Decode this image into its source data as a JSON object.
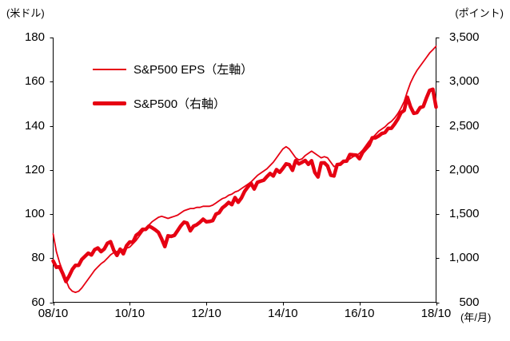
{
  "chart_data": {
    "type": "line",
    "title": "",
    "left_axis": {
      "unit": "(米ドル)",
      "min": 60,
      "max": 180,
      "ticks": [
        {
          "value": 180,
          "label": "180"
        },
        {
          "value": 160,
          "label": "160"
        },
        {
          "value": 140,
          "label": "140"
        },
        {
          "value": 120,
          "label": "120"
        },
        {
          "value": 100,
          "label": "100"
        },
        {
          "value": 80,
          "label": "80"
        },
        {
          "value": 60,
          "label": "60"
        }
      ]
    },
    "right_axis": {
      "unit": "(ポイント)",
      "min": 500,
      "max": 3500,
      "ticks": [
        {
          "value": 3500,
          "label": "3,500"
        },
        {
          "value": 3000,
          "label": "3,000"
        },
        {
          "value": 2500,
          "label": "2,500"
        },
        {
          "value": 2000,
          "label": "2,000"
        },
        {
          "value": 1500,
          "label": "1,500"
        },
        {
          "value": 1000,
          "label": "1,000"
        },
        {
          "value": 500,
          "label": "500"
        }
      ]
    },
    "x_axis": {
      "unit": "(年/月)",
      "start": "2008/10",
      "end": "2018/10",
      "frequency": "monthly",
      "ticks": [
        {
          "label": "08/10",
          "index": 0
        },
        {
          "label": "10/10",
          "index": 24
        },
        {
          "label": "12/10",
          "index": 48
        },
        {
          "label": "14/10",
          "index": 72
        },
        {
          "label": "16/10",
          "index": 96
        },
        {
          "label": "18/10",
          "index": 120
        }
      ]
    },
    "series": [
      {
        "name": "S&P500 EPS（左軸）",
        "axis": "left",
        "color": "#e60012",
        "line_width": "thin",
        "values": [
          91,
          83,
          78,
          74,
          70,
          66.5,
          65,
          64.5,
          65,
          66.5,
          68.5,
          70.5,
          72.5,
          74.5,
          76,
          77.5,
          78.5,
          80,
          81.5,
          82.5,
          83,
          83.5,
          84,
          84.5,
          85,
          86.5,
          88,
          90,
          92,
          93.5,
          95,
          96.5,
          97.5,
          98.5,
          99,
          98.5,
          98,
          98.5,
          99,
          99.5,
          100.5,
          101.5,
          102,
          102.5,
          102.5,
          103,
          103,
          103.5,
          103.5,
          103.5,
          104,
          105,
          106,
          107,
          107.5,
          108.5,
          109,
          110,
          110.5,
          111.5,
          112.5,
          113.5,
          114.5,
          116,
          117.5,
          118.5,
          119.5,
          120.5,
          122,
          123.5,
          125.5,
          127.5,
          129.5,
          130.5,
          129.5,
          127.5,
          125.5,
          124.5,
          125,
          126.5,
          127.5,
          128.5,
          127.5,
          126.5,
          125.5,
          126,
          125.5,
          123.5,
          121.5,
          122,
          123,
          123.5,
          124,
          125,
          126,
          126.5,
          127.5,
          129,
          131,
          133,
          134.5,
          136,
          137.5,
          138.5,
          139.5,
          141,
          142,
          143.5,
          145.5,
          148,
          151,
          155.5,
          159.5,
          162.5,
          165,
          167,
          169,
          171,
          173,
          174.5,
          176
        ]
      },
      {
        "name": "S&P500（右軸）",
        "axis": "right",
        "color": "#e60012",
        "line_width": "thick",
        "values": [
          969,
          896,
          903,
          826,
          735,
          798,
          873,
          919,
          919,
          987,
          1021,
          1057,
          1036,
          1096,
          1115,
          1074,
          1104,
          1169,
          1187,
          1089,
          1031,
          1102,
          1049,
          1141,
          1183,
          1181,
          1258,
          1286,
          1327,
          1326,
          1364,
          1345,
          1321,
          1292,
          1219,
          1131,
          1253,
          1247,
          1258,
          1312,
          1366,
          1408,
          1398,
          1310,
          1362,
          1379,
          1407,
          1441,
          1412,
          1416,
          1426,
          1498,
          1515,
          1569,
          1598,
          1631,
          1606,
          1686,
          1633,
          1682,
          1757,
          1806,
          1848,
          1783,
          1859,
          1872,
          1884,
          1924,
          1960,
          1931,
          2003,
          1972,
          2018,
          2068,
          2059,
          1995,
          2105,
          2068,
          2086,
          2107,
          2063,
          2104,
          1972,
          1920,
          2079,
          2080,
          2044,
          1940,
          1932,
          2060,
          2065,
          2097,
          2099,
          2174,
          2171,
          2168,
          2126,
          2199,
          2239,
          2279,
          2364,
          2363,
          2384,
          2412,
          2423,
          2470,
          2472,
          2519,
          2575,
          2648,
          2674,
          2824,
          2714,
          2641,
          2648,
          2705,
          2718,
          2816,
          2902,
          2914,
          2712
        ]
      }
    ],
    "grid": "off",
    "legend_position": "inside-top-left"
  },
  "colors": {
    "series_red": "#e60012",
    "axis": "#000000",
    "text": "#000000",
    "background": "#ffffff"
  }
}
